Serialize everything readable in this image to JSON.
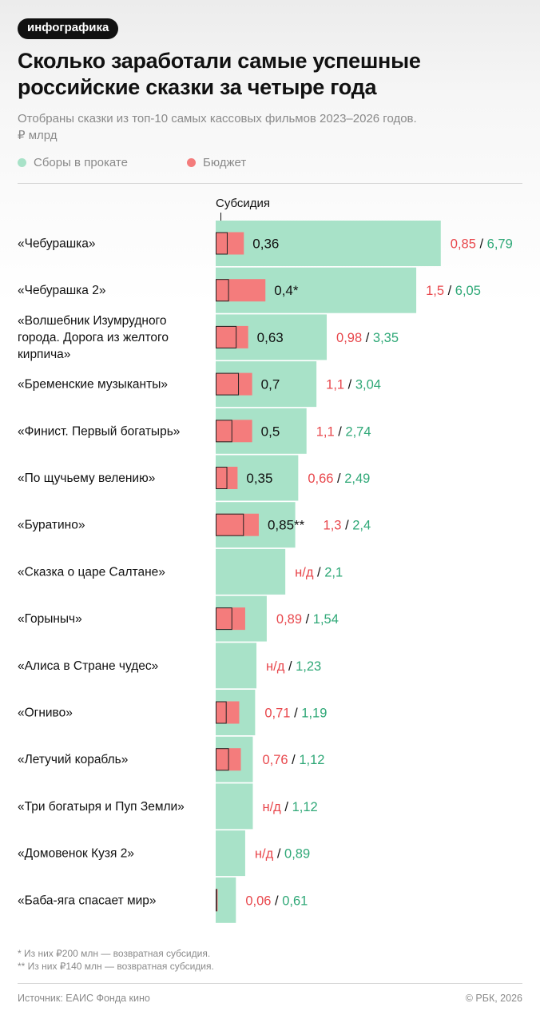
{
  "badge": "инфографика",
  "title_lines": [
    "Сколько заработали самые успешные",
    "российские сказки за четыре года"
  ],
  "subtitle_lines": [
    "Отобраны сказки из топ-10 самых кассовых фильмов 2023–2026 годов.",
    "₽ млрд"
  ],
  "legend": [
    {
      "label": "Сборы в прокате",
      "color": "#a8e2c8"
    },
    {
      "label": "Бюджет",
      "color": "#f47c7c"
    }
  ],
  "subsidy_label": "Субсидия",
  "colors": {
    "boxoffice": "#a8e2c8",
    "budget": "#f47c7c",
    "budget_text": "#e8474c",
    "boxoffice_text": "#2fa877"
  },
  "chart_data": {
    "type": "bar",
    "title": "Сколько заработали самые успешные российские сказки за четыре года",
    "unit": "₽ млрд",
    "series": [
      {
        "name": "Сборы в прокате",
        "key": "boxoffice"
      },
      {
        "name": "Бюджет",
        "key": "budget"
      },
      {
        "name": "Субсидия",
        "key": "subsidy"
      }
    ],
    "rows": [
      {
        "label_lines": [
          "«Чебурашка»"
        ],
        "boxoffice": 6.79,
        "budget": 0.85,
        "subsidy": 0.36,
        "subsidy_label": "0,36",
        "budget_label": "0,85",
        "boxoffice_label": "6,79"
      },
      {
        "label_lines": [
          "«Чебурашка 2»"
        ],
        "boxoffice": 6.05,
        "budget": 1.5,
        "subsidy": 0.4,
        "subsidy_label": "0,4*",
        "budget_label": "1,5",
        "boxoffice_label": "6,05"
      },
      {
        "label_lines": [
          "«Волшебник Изумрудного",
          "города. Дорога из желтого",
          "кирпича»"
        ],
        "boxoffice": 3.35,
        "budget": 0.98,
        "subsidy": 0.63,
        "subsidy_label": "0,63",
        "budget_label": "0,98",
        "boxoffice_label": "3,35"
      },
      {
        "label_lines": [
          "«Бременские музыканты»"
        ],
        "boxoffice": 3.04,
        "budget": 1.1,
        "subsidy": 0.7,
        "subsidy_label": "0,7",
        "budget_label": "1,1",
        "boxoffice_label": "3,04"
      },
      {
        "label_lines": [
          "«Финист. Первый богатырь»"
        ],
        "boxoffice": 2.74,
        "budget": 1.1,
        "subsidy": 0.5,
        "subsidy_label": "0,5",
        "budget_label": "1,1",
        "boxoffice_label": "2,74"
      },
      {
        "label_lines": [
          "«По щучьему велению»"
        ],
        "boxoffice": 2.49,
        "budget": 0.66,
        "subsidy": 0.35,
        "subsidy_label": "0,35",
        "budget_label": "0,66",
        "boxoffice_label": "2,49"
      },
      {
        "label_lines": [
          "«Буратино»"
        ],
        "boxoffice": 2.4,
        "budget": 1.3,
        "subsidy": 0.85,
        "subsidy_label": "0,85**",
        "budget_label": "1,3",
        "boxoffice_label": "2,4"
      },
      {
        "label_lines": [
          "«Сказка о царе Салтане»"
        ],
        "boxoffice": 2.1,
        "budget": null,
        "subsidy": null,
        "subsidy_label": "",
        "budget_label": "н/д",
        "boxoffice_label": "2,1"
      },
      {
        "label_lines": [
          "«Горыныч»"
        ],
        "boxoffice": 1.54,
        "budget": 0.89,
        "subsidy": 0.5,
        "subsidy_label": "",
        "budget_label": "0,89",
        "boxoffice_label": "1,54"
      },
      {
        "label_lines": [
          "«Алиса в Стране чудес»"
        ],
        "boxoffice": 1.23,
        "budget": null,
        "subsidy": null,
        "subsidy_label": "",
        "budget_label": "н/д",
        "boxoffice_label": "1,23"
      },
      {
        "label_lines": [
          "«Огниво»"
        ],
        "boxoffice": 1.19,
        "budget": 0.71,
        "subsidy": 0.33,
        "subsidy_label": "",
        "budget_label": "0,71",
        "boxoffice_label": "1,19"
      },
      {
        "label_lines": [
          "«Летучий корабль»"
        ],
        "boxoffice": 1.12,
        "budget": 0.76,
        "subsidy": 0.4,
        "subsidy_label": "",
        "budget_label": "0,76",
        "boxoffice_label": "1,12"
      },
      {
        "label_lines": [
          "«Три богатыря и Пуп Земли»"
        ],
        "boxoffice": 1.12,
        "budget": null,
        "subsidy": null,
        "subsidy_label": "",
        "budget_label": "н/д",
        "boxoffice_label": "1,12"
      },
      {
        "label_lines": [
          "«Домовенок Кузя 2»"
        ],
        "boxoffice": 0.89,
        "budget": null,
        "subsidy": null,
        "subsidy_label": "",
        "budget_label": "н/д",
        "boxoffice_label": "0,89"
      },
      {
        "label_lines": [
          "«Баба-яга спасает мир»"
        ],
        "boxoffice": 0.61,
        "budget": 0.06,
        "subsidy": 0.03,
        "subsidy_label": "",
        "budget_label": "0,06",
        "boxoffice_label": "0,61"
      }
    ],
    "value_separator": "/"
  },
  "footnotes": [
    "* Из них ₽200 млн — возвратная субсидия.",
    "** Из них ₽140 млн — возвратная субсидия."
  ],
  "source": "Источник: ЕАИС Фонда кино",
  "copyright": "© РБК, 2026"
}
